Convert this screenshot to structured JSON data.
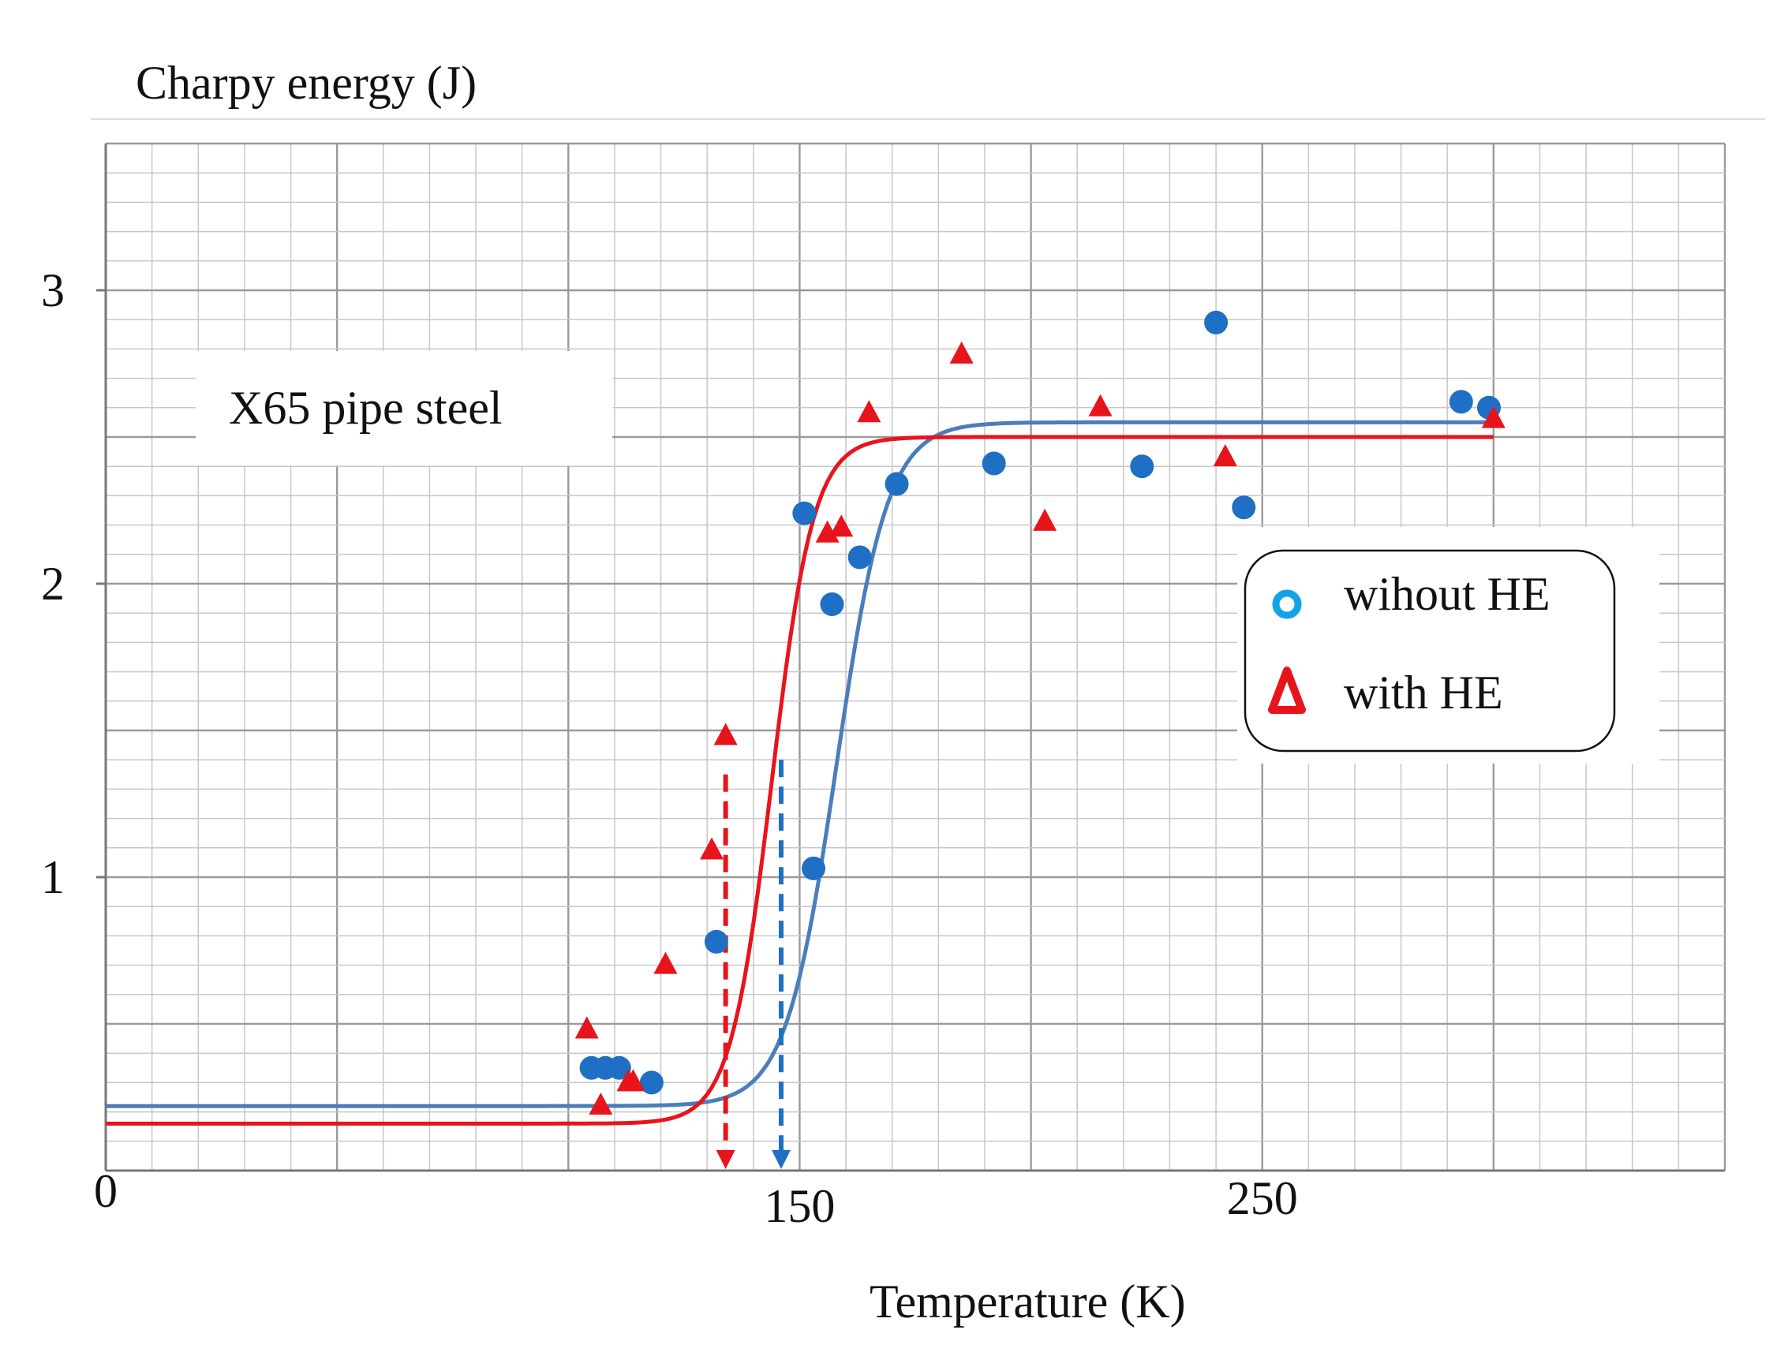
{
  "chart_data": {
    "type": "scatter",
    "title": "",
    "ylabel": "Charpy energy (J)",
    "xlabel": "Temperature (K)",
    "xlim": [
      0,
      350
    ],
    "ylim": [
      0,
      3.5
    ],
    "x_ticks": [
      0,
      150,
      250
    ],
    "y_ticks": [
      1,
      2,
      3
    ],
    "grid": true,
    "annotation": "X65 pipe steel",
    "legend_position": "right",
    "series": [
      {
        "name": "wihout HE",
        "marker": "circle",
        "color": "#1f6fc4",
        "points": [
          [
            105,
            0.35
          ],
          [
            108,
            0.35
          ],
          [
            111,
            0.35
          ],
          [
            118,
            0.3
          ],
          [
            132,
            0.78
          ],
          [
            151,
            2.24
          ],
          [
            153,
            1.03
          ],
          [
            157,
            1.93
          ],
          [
            163,
            2.09
          ],
          [
            171,
            2.34
          ],
          [
            192,
            2.41
          ],
          [
            224,
            2.4
          ],
          [
            240,
            2.89
          ],
          [
            246,
            2.26
          ],
          [
            293,
            2.62
          ],
          [
            299,
            2.6
          ]
        ]
      },
      {
        "name": "with HE",
        "marker": "triangle",
        "color": "#e8141c",
        "points": [
          [
            104,
            0.48
          ],
          [
            107,
            0.22
          ],
          [
            113,
            0.3
          ],
          [
            114,
            0.3
          ],
          [
            121,
            0.7
          ],
          [
            131,
            1.09
          ],
          [
            134,
            1.48
          ],
          [
            156,
            2.17
          ],
          [
            159,
            2.19
          ],
          [
            165,
            2.58
          ],
          [
            185,
            2.78
          ],
          [
            203,
            2.21
          ],
          [
            215,
            2.6
          ],
          [
            242,
            2.43
          ],
          [
            300,
            2.56
          ]
        ]
      }
    ],
    "fits": [
      {
        "name": "wihout HE fit",
        "color": "#4a7ebb",
        "lower": 0.22,
        "upper": 2.55,
        "t0": 158,
        "width": 11
      },
      {
        "name": "with HE fit",
        "color": "#e8141c",
        "lower": 0.16,
        "upper": 2.5,
        "t0": 144,
        "width": 9
      }
    ],
    "transition_markers": [
      {
        "color": "#e8141c",
        "x": 134,
        "y_top": 1.35
      },
      {
        "color": "#1f6fc4",
        "x": 146,
        "y_top": 1.4
      }
    ]
  }
}
